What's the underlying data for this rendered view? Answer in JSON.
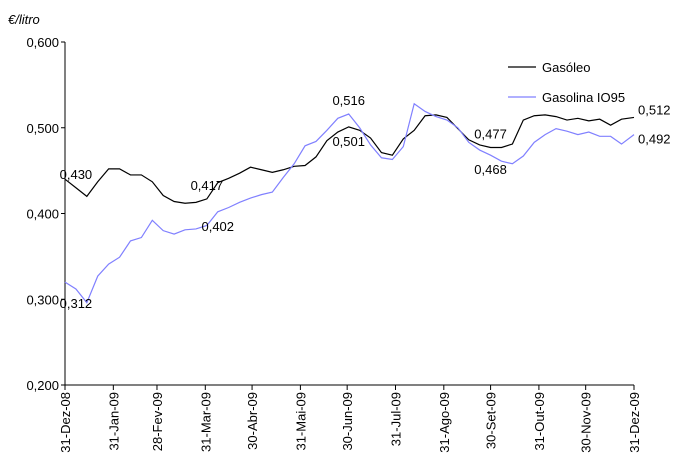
{
  "chart_data": {
    "type": "line",
    "y_label": "€/litro",
    "xlim": [
      0,
      365
    ],
    "xticks": [
      {
        "value": 0,
        "label": "31-Dez-08"
      },
      {
        "value": 31,
        "label": "31-Jan-09"
      },
      {
        "value": 59,
        "label": "28-Fev-09"
      },
      {
        "value": 90,
        "label": "31-Mar-09"
      },
      {
        "value": 120,
        "label": "30-Abr-09"
      },
      {
        "value": 151,
        "label": "31-Mai-09"
      },
      {
        "value": 181,
        "label": "30-Jun-09"
      },
      {
        "value": 212,
        "label": "31-Jul-09"
      },
      {
        "value": 243,
        "label": "31-Ago-09"
      },
      {
        "value": 273,
        "label": "30-Set-09"
      },
      {
        "value": 304,
        "label": "31-Out-09"
      },
      {
        "value": 334,
        "label": "30-Nov-09"
      },
      {
        "value": 365,
        "label": "31-Dez-09"
      }
    ],
    "ylim": [
      0.2,
      0.6
    ],
    "yticks": [
      {
        "value": 0.2,
        "label": "0,200"
      },
      {
        "value": 0.3,
        "label": "0,300"
      },
      {
        "value": 0.4,
        "label": "0,400"
      },
      {
        "value": 0.5,
        "label": "0,500"
      },
      {
        "value": 0.6,
        "label": "0,600"
      }
    ],
    "legend": "top-right",
    "x": [
      0,
      7,
      14,
      21,
      28,
      35,
      42,
      49,
      56,
      63,
      70,
      77,
      84,
      91,
      98,
      105,
      112,
      119,
      126,
      133,
      140,
      147,
      154,
      161,
      168,
      175,
      182,
      189,
      196,
      203,
      210,
      217,
      224,
      231,
      238,
      245,
      252,
      259,
      266,
      273,
      280,
      287,
      294,
      301,
      308,
      315,
      322,
      329,
      336,
      343,
      350,
      357,
      365
    ],
    "series": [
      {
        "name": "Gasóleo",
        "color": "#000000",
        "values": [
          0.44,
          0.43,
          0.42,
          0.437,
          0.452,
          0.452,
          0.445,
          0.445,
          0.437,
          0.421,
          0.414,
          0.412,
          0.413,
          0.417,
          0.436,
          0.441,
          0.447,
          0.454,
          0.451,
          0.448,
          0.451,
          0.455,
          0.456,
          0.466,
          0.485,
          0.495,
          0.501,
          0.497,
          0.488,
          0.471,
          0.468,
          0.487,
          0.497,
          0.514,
          0.515,
          0.512,
          0.499,
          0.486,
          0.48,
          0.477,
          0.477,
          0.481,
          0.509,
          0.514,
          0.515,
          0.513,
          0.509,
          0.511,
          0.508,
          0.51,
          0.503,
          0.51,
          0.512
        ],
        "value_labels": [
          null,
          "0,430",
          null,
          null,
          null,
          null,
          null,
          null,
          null,
          null,
          null,
          null,
          null,
          "0,417",
          null,
          null,
          null,
          null,
          null,
          null,
          null,
          null,
          null,
          null,
          null,
          null,
          "0,501",
          null,
          null,
          null,
          null,
          null,
          null,
          null,
          null,
          null,
          null,
          null,
          null,
          "0,477",
          null,
          null,
          null,
          null,
          null,
          null,
          null,
          null,
          null,
          null,
          null,
          null,
          "0,512"
        ]
      },
      {
        "name": "Gasolina IO95",
        "color": "#8080ff",
        "values": [
          0.32,
          0.312,
          0.296,
          0.327,
          0.341,
          0.349,
          0.368,
          0.372,
          0.392,
          0.38,
          0.376,
          0.381,
          0.382,
          0.386,
          0.402,
          0.407,
          0.413,
          0.418,
          0.422,
          0.425,
          0.442,
          0.458,
          0.479,
          0.484,
          0.497,
          0.511,
          0.516,
          0.5,
          0.48,
          0.465,
          0.463,
          0.478,
          0.528,
          0.519,
          0.513,
          0.509,
          0.5,
          0.483,
          0.474,
          0.468,
          0.461,
          0.458,
          0.467,
          0.483,
          0.492,
          0.499,
          0.496,
          0.492,
          0.495,
          0.49,
          0.49,
          0.481,
          0.492
        ],
        "value_labels": [
          null,
          "0,312",
          null,
          null,
          null,
          null,
          null,
          null,
          null,
          null,
          null,
          null,
          null,
          null,
          "0,402",
          null,
          null,
          null,
          null,
          null,
          null,
          null,
          null,
          null,
          null,
          null,
          "0,516",
          null,
          null,
          null,
          null,
          null,
          null,
          null,
          null,
          null,
          null,
          null,
          null,
          "0,468",
          null,
          null,
          null,
          null,
          null,
          null,
          null,
          null,
          null,
          null,
          null,
          null,
          "0,492"
        ]
      }
    ]
  }
}
